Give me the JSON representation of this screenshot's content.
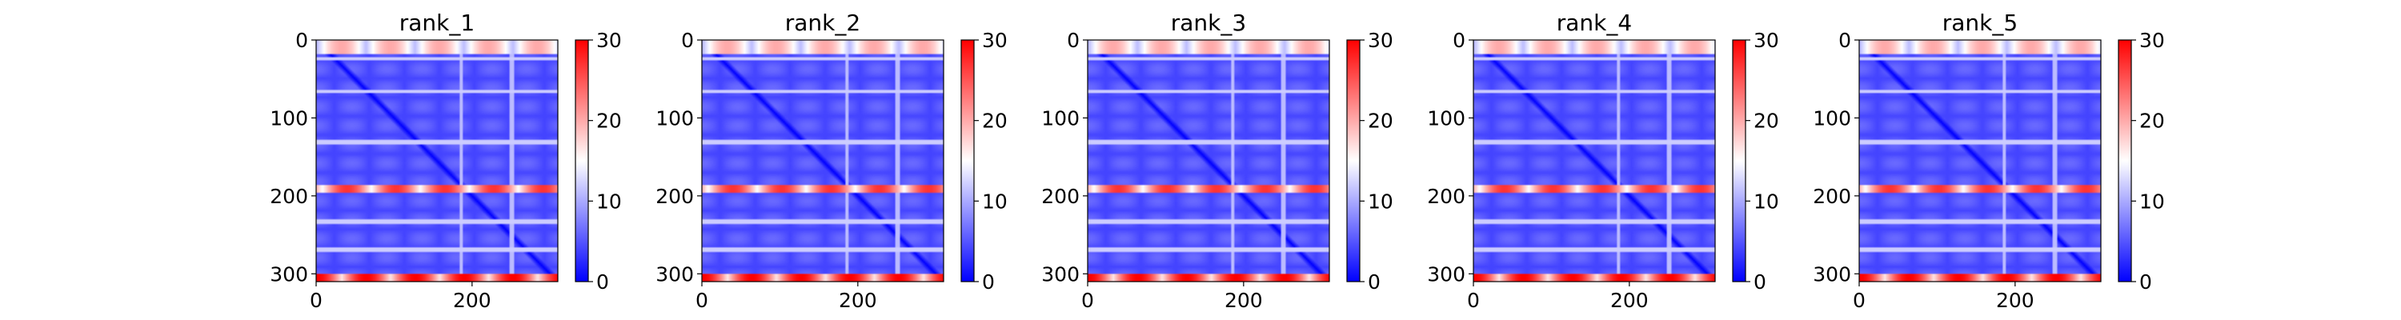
{
  "chart_data": {
    "type": "heatmap",
    "colormap": {
      "name": "bwr",
      "stops": [
        "#0000ff",
        "#ffffff",
        "#ff0000"
      ]
    },
    "grid": false,
    "rows": 310,
    "cols": 310,
    "xlim": [
      0,
      310
    ],
    "ylim": [
      310,
      0
    ],
    "x_ticks": [
      0,
      200
    ],
    "y_ticks": [
      0,
      100,
      200,
      300
    ],
    "colorbar": {
      "vmin": 0,
      "vmax": 30,
      "ticks": [
        0,
        10,
        20,
        30
      ]
    },
    "structure": {
      "high_error_row_bands": [
        {
          "start": 300,
          "end": 310,
          "level": 30
        },
        {
          "start": 185,
          "end": 196,
          "level": 27
        },
        {
          "start": 0,
          "end": 18,
          "level": 20
        }
      ],
      "light_row_lines": [
        23,
        65,
        130,
        232,
        268
      ],
      "light_col_lines": [
        185,
        250
      ],
      "diagonal_value": 0,
      "background_value": 4
    },
    "panels": [
      {
        "title": "rank_1"
      },
      {
        "title": "rank_2"
      },
      {
        "title": "rank_3"
      },
      {
        "title": "rank_4"
      },
      {
        "title": "rank_5"
      }
    ]
  }
}
